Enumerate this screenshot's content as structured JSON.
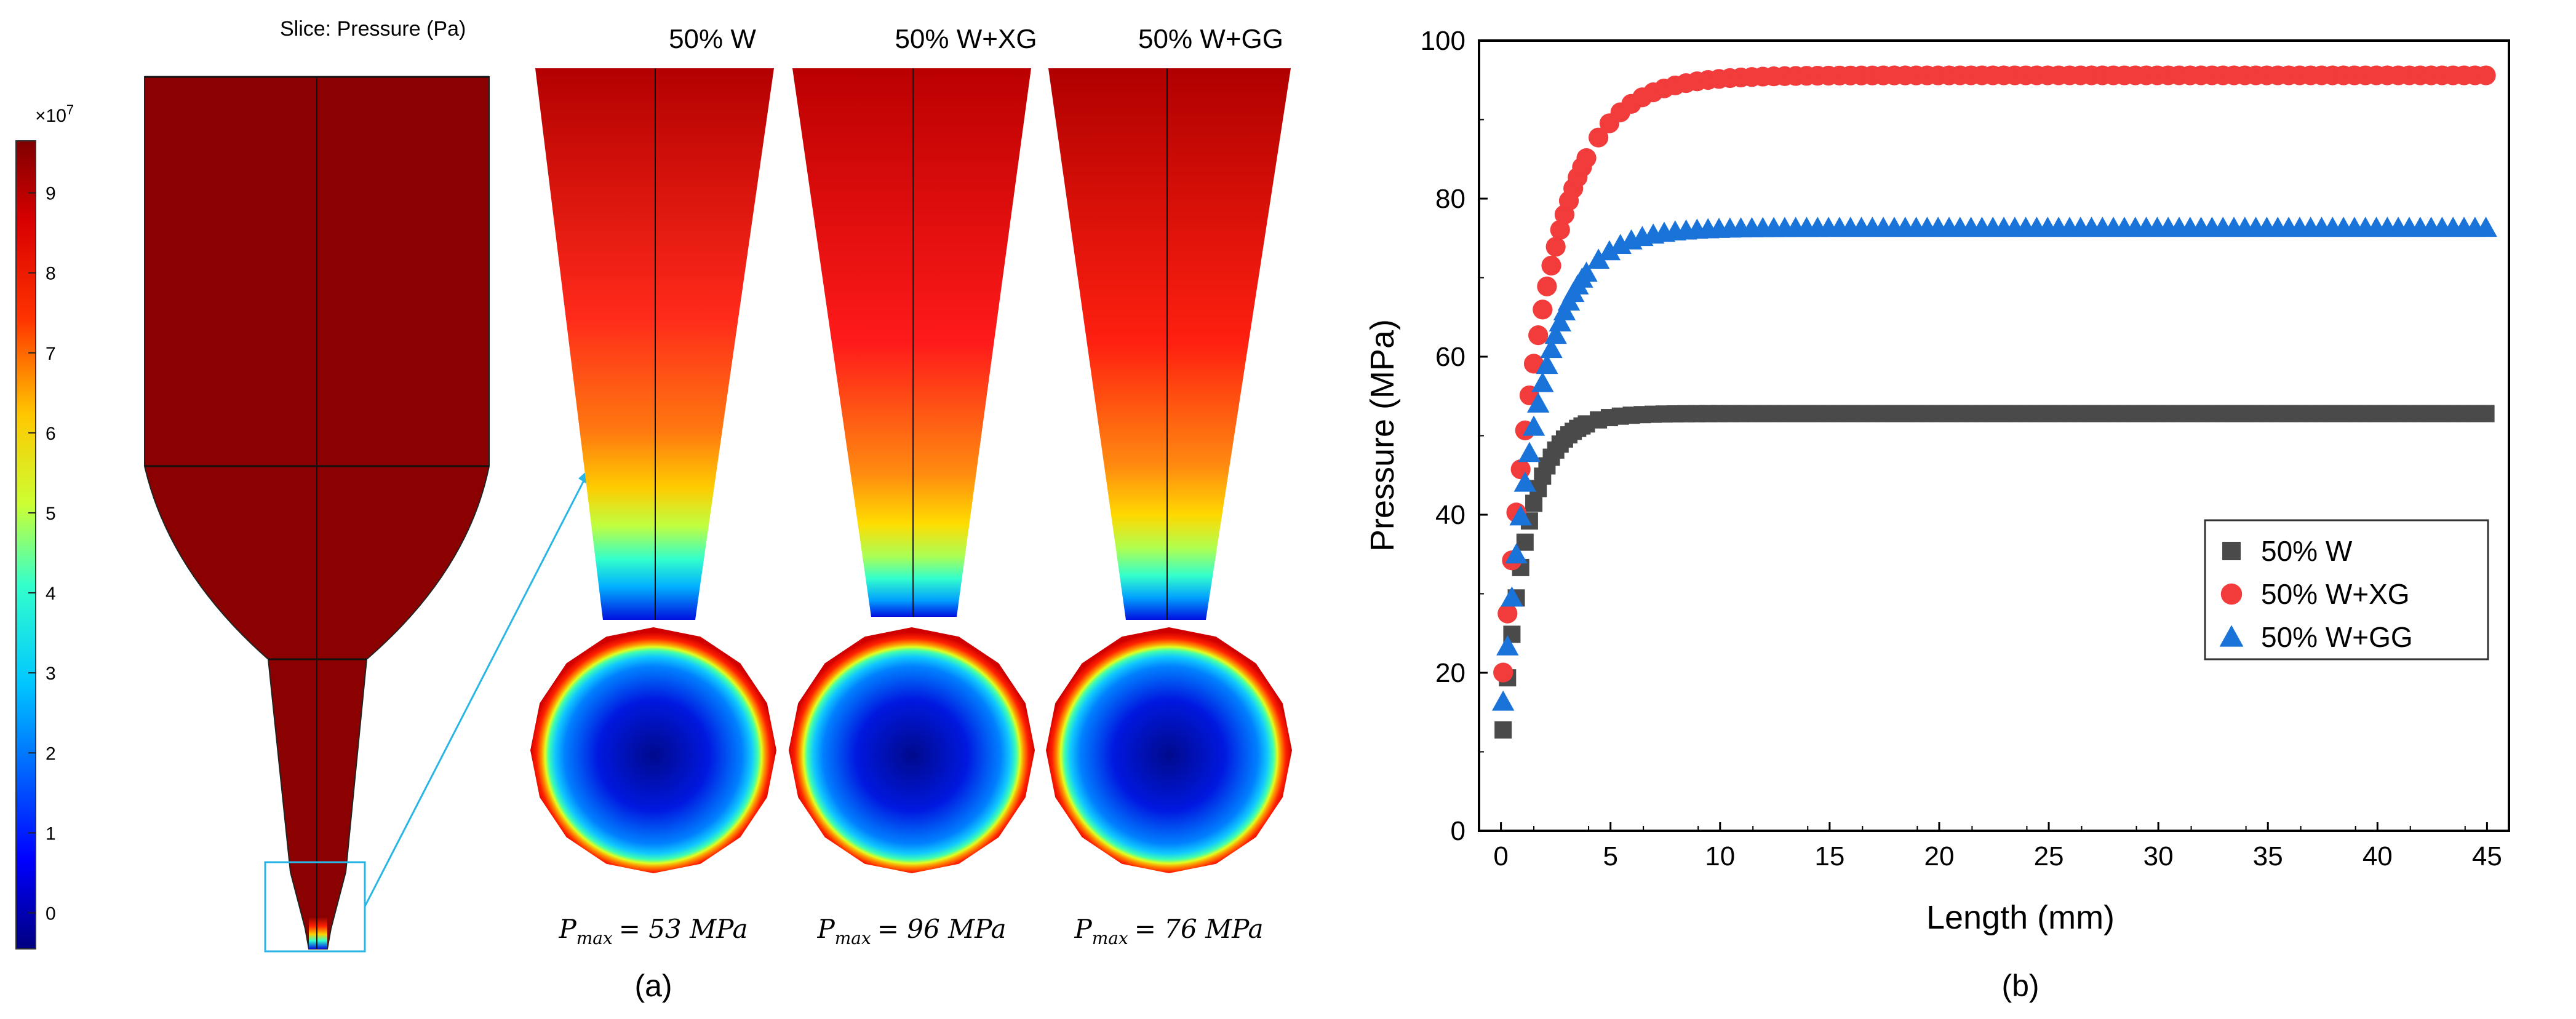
{
  "panel_a": {
    "slice_title": "Slice: Pressure (Pa)",
    "colorbar_multiplier": "×10",
    "colorbar_exponent": "7",
    "colorbar_ticks": [
      "9",
      "8",
      "7",
      "6",
      "5",
      "4",
      "3",
      "2",
      "1",
      "0"
    ],
    "columns": [
      {
        "label": "50% W",
        "pmax_sym": "P",
        "pmax_sub": "max",
        "pmax_val": "= 53 MPa"
      },
      {
        "label": "50% W+XG",
        "pmax_sym": "P",
        "pmax_sub": "max",
        "pmax_val": "= 96 MPa"
      },
      {
        "label": "50% W+GG",
        "pmax_sym": "P",
        "pmax_sub": "max",
        "pmax_val": "= 76 MPa"
      }
    ],
    "caption": "(a)"
  },
  "panel_b": {
    "caption": "(b)"
  },
  "chart_data": {
    "type": "scatter",
    "xlabel": "Length (mm)",
    "ylabel": "Pressure (MPa)",
    "xlim": [
      -1,
      46
    ],
    "ylim": [
      0,
      100
    ],
    "xticks": [
      0,
      5,
      10,
      15,
      20,
      25,
      30,
      35,
      40,
      45
    ],
    "yticks": [
      0,
      20,
      40,
      60,
      80,
      100
    ],
    "grid": false,
    "legend_position": "center-right",
    "series": [
      {
        "name": "50% W",
        "marker": "square",
        "color": "#4a4a4a",
        "plateau": 52.8,
        "start": 9,
        "rate": 0.9,
        "x_first": 0.1,
        "x_dense_until": 4
      },
      {
        "name": "50% W+XG",
        "marker": "circle",
        "color": "#f23b3b",
        "plateau": 95.6,
        "start": 16,
        "rate": 0.52,
        "x_first": 0.1,
        "x_dense_until": 4
      },
      {
        "name": "50% W+GG",
        "marker": "triangle",
        "color": "#1a73d9",
        "plateau": 76.3,
        "start": 12.5,
        "rate": 0.62,
        "x_first": 0.1,
        "x_dense_until": 4
      }
    ],
    "x_last": 45
  }
}
